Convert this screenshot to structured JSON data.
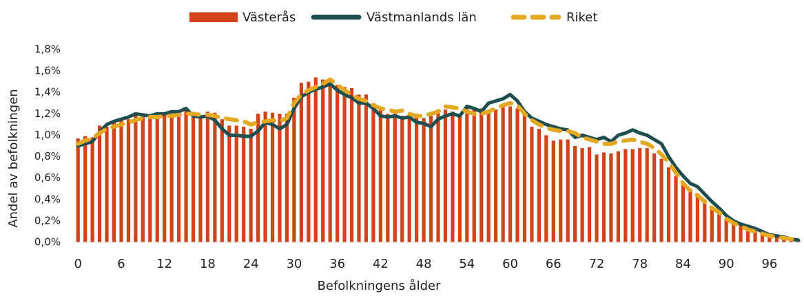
{
  "chart_data": {
    "type": "bar",
    "xlabel": "Befolkningens ålder",
    "ylabel": "Andel av befolkningen",
    "categories": [
      "0",
      null,
      null,
      null,
      null,
      null,
      "6",
      null,
      null,
      null,
      null,
      null,
      "12",
      null,
      null,
      null,
      null,
      null,
      "18",
      null,
      null,
      null,
      null,
      null,
      "24",
      null,
      null,
      null,
      null,
      null,
      "30",
      null,
      null,
      null,
      null,
      null,
      "36",
      null,
      null,
      null,
      null,
      null,
      "42",
      null,
      null,
      null,
      null,
      null,
      "48",
      null,
      null,
      null,
      null,
      null,
      "54",
      null,
      null,
      null,
      null,
      null,
      "60",
      null,
      null,
      null,
      null,
      null,
      "66",
      null,
      null,
      null,
      null,
      null,
      "72",
      null,
      null,
      null,
      null,
      null,
      "78",
      null,
      null,
      null,
      null,
      null,
      "84",
      null,
      null,
      null,
      null,
      null,
      "90",
      null,
      null,
      null,
      null,
      null,
      "96",
      null,
      null,
      null,
      null
    ],
    "ylim": [
      0,
      1.8
    ],
    "yticks": [
      {
        "value": 0,
        "label": "0,0%"
      },
      {
        "value": 0.2,
        "label": "0,2%"
      },
      {
        "value": 0.4,
        "label": "0,4%"
      },
      {
        "value": 0.6,
        "label": "0,6%"
      },
      {
        "value": 0.8,
        "label": "0,8%"
      },
      {
        "value": 1.0,
        "label": "1,0%"
      },
      {
        "value": 1.2,
        "label": "1,2%"
      },
      {
        "value": 1.4,
        "label": "1,4%"
      },
      {
        "value": 1.6,
        "label": "1,6%"
      },
      {
        "value": 1.8,
        "label": "1,8%"
      }
    ],
    "legend": "top",
    "series": [
      {
        "name": "Västerås",
        "type": "bar",
        "color": "#d2431a",
        "values": [
          0.97,
          0.99,
          0.98,
          1.09,
          1.08,
          1.12,
          1.16,
          1.15,
          1.2,
          1.18,
          1.17,
          1.18,
          1.19,
          1.2,
          1.22,
          1.23,
          1.18,
          1.18,
          1.22,
          1.21,
          1.15,
          1.09,
          1.09,
          1.08,
          1.06,
          1.2,
          1.22,
          1.21,
          1.2,
          1.2,
          1.35,
          1.49,
          1.5,
          1.54,
          1.52,
          1.48,
          1.47,
          1.45,
          1.44,
          1.38,
          1.38,
          1.3,
          1.24,
          1.2,
          1.2,
          1.18,
          1.19,
          1.2,
          1.16,
          1.18,
          1.24,
          1.24,
          1.22,
          1.2,
          1.28,
          1.26,
          1.25,
          1.22,
          1.24,
          1.27,
          1.27,
          1.25,
          1.2,
          1.08,
          1.06,
          1.0,
          0.95,
          0.96,
          0.96,
          0.9,
          0.88,
          0.89,
          0.82,
          0.84,
          0.83,
          0.85,
          0.87,
          0.87,
          0.88,
          0.88,
          0.83,
          0.78,
          0.7,
          0.62,
          0.55,
          0.5,
          0.45,
          0.4,
          0.32,
          0.28,
          0.22,
          0.2,
          0.16,
          0.14,
          0.12,
          0.1,
          0.07,
          0.05,
          0.04,
          0.03,
          0.02
        ]
      },
      {
        "name": "Västmanlands län",
        "type": "line",
        "style": "solid",
        "color": "#1f4e50",
        "values": [
          0.9,
          0.92,
          0.94,
          1.03,
          1.1,
          1.13,
          1.15,
          1.17,
          1.2,
          1.19,
          1.18,
          1.2,
          1.2,
          1.22,
          1.22,
          1.25,
          1.18,
          1.17,
          1.18,
          1.14,
          1.06,
          1.0,
          1.0,
          0.99,
          0.99,
          1.04,
          1.12,
          1.1,
          1.06,
          1.1,
          1.25,
          1.36,
          1.4,
          1.43,
          1.45,
          1.48,
          1.42,
          1.38,
          1.35,
          1.3,
          1.3,
          1.25,
          1.18,
          1.17,
          1.18,
          1.16,
          1.17,
          1.12,
          1.11,
          1.08,
          1.15,
          1.18,
          1.2,
          1.18,
          1.27,
          1.25,
          1.22,
          1.3,
          1.32,
          1.34,
          1.38,
          1.32,
          1.22,
          1.16,
          1.13,
          1.1,
          1.08,
          1.06,
          1.05,
          0.98,
          1.0,
          0.98,
          0.96,
          0.98,
          0.94,
          1.0,
          1.02,
          1.05,
          1.02,
          1.0,
          0.96,
          0.92,
          0.8,
          0.7,
          0.62,
          0.55,
          0.52,
          0.45,
          0.38,
          0.32,
          0.25,
          0.2,
          0.17,
          0.15,
          0.13,
          0.1,
          0.07,
          0.06,
          0.05,
          0.03,
          0.02
        ]
      },
      {
        "name": "Riket",
        "type": "line",
        "style": "dashed",
        "color": "#e5a823",
        "values": [
          0.92,
          0.95,
          0.97,
          1.02,
          1.06,
          1.08,
          1.1,
          1.12,
          1.14,
          1.16,
          1.17,
          1.17,
          1.18,
          1.18,
          1.19,
          1.2,
          1.2,
          1.19,
          1.19,
          1.18,
          1.16,
          1.15,
          1.14,
          1.13,
          1.1,
          1.12,
          1.13,
          1.14,
          1.13,
          1.16,
          1.3,
          1.38,
          1.42,
          1.45,
          1.48,
          1.52,
          1.47,
          1.42,
          1.38,
          1.34,
          1.32,
          1.28,
          1.25,
          1.24,
          1.22,
          1.23,
          1.2,
          1.18,
          1.18,
          1.2,
          1.22,
          1.27,
          1.26,
          1.25,
          1.22,
          1.2,
          1.2,
          1.22,
          1.25,
          1.28,
          1.3,
          1.28,
          1.2,
          1.14,
          1.1,
          1.07,
          1.05,
          1.04,
          1.04,
          1.02,
          0.98,
          0.96,
          0.94,
          0.92,
          0.92,
          0.94,
          0.95,
          0.96,
          0.94,
          0.92,
          0.88,
          0.82,
          0.75,
          0.65,
          0.55,
          0.48,
          0.44,
          0.38,
          0.32,
          0.28,
          0.22,
          0.18,
          0.15,
          0.12,
          0.1,
          0.08,
          0.06,
          0.05,
          0.04,
          0.03,
          0.02
        ]
      }
    ]
  }
}
